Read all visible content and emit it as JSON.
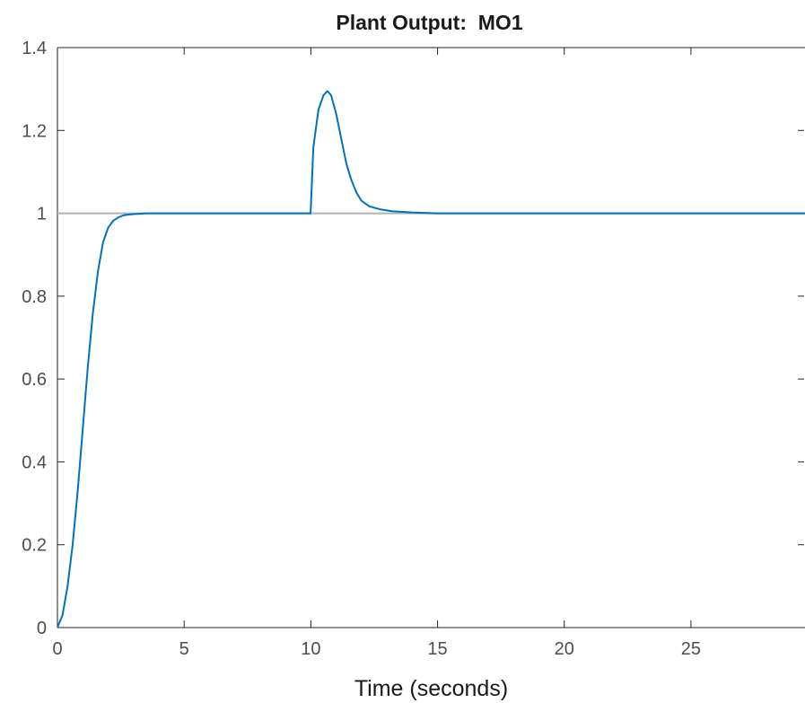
{
  "chart_data": {
    "type": "line",
    "title": "Plant Output:  MO1",
    "xlabel": "Time (seconds)",
    "ylabel": "",
    "xlim": [
      0,
      29.5
    ],
    "ylim": [
      0,
      1.4
    ],
    "xticks": [
      0,
      5,
      10,
      15,
      20,
      25
    ],
    "xtick_labels": [
      "0",
      "5",
      "10",
      "15",
      "20",
      "25"
    ],
    "yticks": [
      0,
      0.2,
      0.4,
      0.6,
      0.8,
      1,
      1.2,
      1.4
    ],
    "ytick_labels": [
      "0",
      "0.2",
      "0.4",
      "0.6",
      "0.8",
      "1",
      "1.2",
      "1.4"
    ],
    "grid": false,
    "reference_line": {
      "y": 1,
      "color": "#b3b3b3"
    },
    "series": [
      {
        "color": "#0072bd",
        "x": [
          0,
          0.2,
          0.4,
          0.6,
          0.8,
          1.0,
          1.2,
          1.4,
          1.6,
          1.8,
          2.0,
          2.2,
          2.4,
          2.6,
          2.8,
          3.0,
          3.5,
          4.0,
          5.0,
          7.0,
          9.0,
          9.99,
          10.1,
          10.3,
          10.5,
          10.65,
          10.8,
          11.0,
          11.2,
          11.4,
          11.6,
          11.8,
          12.0,
          12.3,
          12.7,
          13.2,
          14.0,
          15.0,
          17.0,
          20.0,
          25.0,
          29.5
        ],
        "y": [
          0,
          0.03,
          0.1,
          0.2,
          0.33,
          0.48,
          0.63,
          0.76,
          0.86,
          0.93,
          0.965,
          0.982,
          0.99,
          0.995,
          0.997,
          0.998,
          1.0,
          1.0,
          1.0,
          1.0,
          1.0,
          1.0,
          1.16,
          1.25,
          1.285,
          1.295,
          1.285,
          1.24,
          1.18,
          1.12,
          1.08,
          1.05,
          1.03,
          1.017,
          1.01,
          1.005,
          1.002,
          1.0,
          1.0,
          1.0,
          1.0,
          1.0
        ]
      }
    ]
  }
}
